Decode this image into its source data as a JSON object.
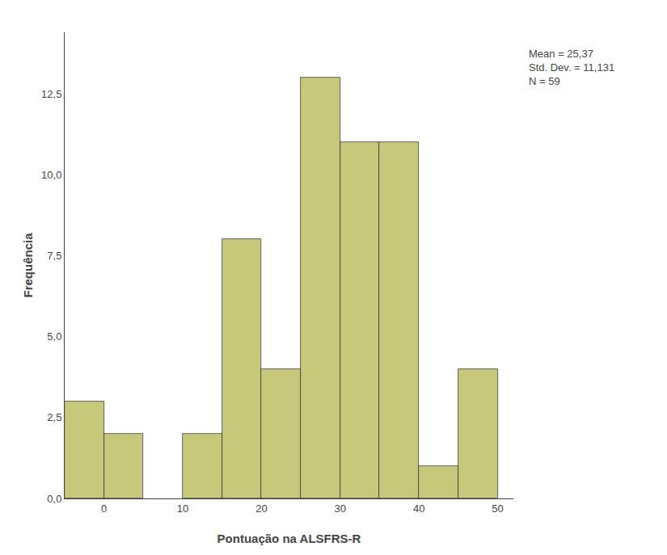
{
  "chart_data": {
    "type": "histogram",
    "xlabel": "Pontuação na ALSFRS-R",
    "ylabel": "Frequência",
    "bins": [
      -5,
      0,
      5,
      10,
      15,
      20,
      25,
      30,
      35,
      40,
      45,
      50
    ],
    "values": [
      3,
      2,
      0,
      2,
      8,
      4,
      13,
      11,
      11,
      1,
      4
    ],
    "color": "#c8c87a",
    "xlim": [
      -5,
      52
    ],
    "ylim": [
      0,
      14.4
    ],
    "xticks": [
      0,
      10,
      20,
      30,
      40,
      50
    ],
    "yticks": [
      {
        "value": 0.0,
        "label": "0,0"
      },
      {
        "value": 2.5,
        "label": "2,5"
      },
      {
        "value": 5.0,
        "label": "5,0"
      },
      {
        "value": 7.5,
        "label": "7,5"
      },
      {
        "value": 10.0,
        "label": "10,0"
      },
      {
        "value": 12.5,
        "label": "12,5"
      }
    ],
    "annotation": "Mean = 25,37\nStd. Dev. = 11,131\nN = 59",
    "grid": false
  }
}
